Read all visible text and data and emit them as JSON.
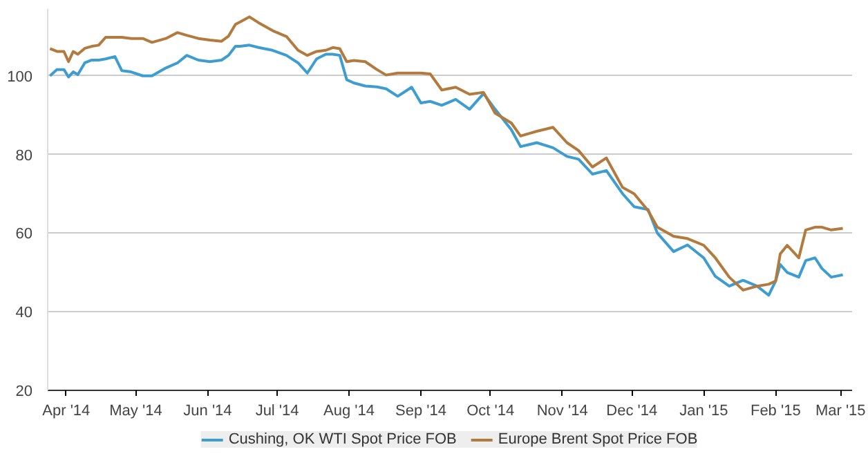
{
  "chart_data": {
    "type": "line",
    "x": [
      "2014-03-25",
      "2014-03-28",
      "2014-03-31",
      "2014-04-02",
      "2014-04-04",
      "2014-04-06",
      "2014-04-09",
      "2014-04-12",
      "2014-04-15",
      "2014-04-18",
      "2014-04-22",
      "2014-04-25",
      "2014-04-29",
      "2014-05-04",
      "2014-05-08",
      "2014-05-14",
      "2014-05-19",
      "2014-05-23",
      "2014-05-28",
      "2014-06-02",
      "2014-06-07",
      "2014-06-10",
      "2014-06-13",
      "2014-06-15",
      "2014-06-19",
      "2014-06-23",
      "2014-06-29",
      "2014-07-05",
      "2014-07-10",
      "2014-07-14",
      "2014-07-18",
      "2014-07-22",
      "2014-07-25",
      "2014-07-28",
      "2014-07-31",
      "2014-08-03",
      "2014-08-08",
      "2014-08-13",
      "2014-08-17",
      "2014-08-22",
      "2014-08-28",
      "2014-09-01",
      "2014-09-05",
      "2014-09-10",
      "2014-09-16",
      "2014-09-22",
      "2014-09-28",
      "2014-10-03",
      "2014-10-10",
      "2014-10-14",
      "2014-10-21",
      "2014-10-28",
      "2014-11-03",
      "2014-11-08",
      "2014-11-14",
      "2014-11-20",
      "2014-11-27",
      "2014-12-02",
      "2014-12-08",
      "2014-12-12",
      "2014-12-19",
      "2014-12-25",
      "2015-01-01",
      "2015-01-06",
      "2015-01-12",
      "2015-01-18",
      "2015-01-24",
      "2015-01-29",
      "2015-02-01",
      "2015-02-03",
      "2015-02-06",
      "2015-02-11",
      "2015-02-14",
      "2015-02-18",
      "2015-02-21",
      "2015-02-25",
      "2015-03-02"
    ],
    "series": [
      {
        "name": "Cushing, OK WTI Spot Price FOB",
        "color": "#3d9dd0",
        "values": [
          100,
          101.6,
          101.6,
          99.7,
          101,
          100.3,
          103.3,
          104,
          104,
          104.3,
          104.9,
          101.3,
          101,
          100,
          100,
          102,
          103.3,
          105.2,
          104,
          103.6,
          104,
          105.2,
          107.5,
          107.5,
          107.8,
          107.2,
          106.5,
          105.2,
          103.3,
          100.7,
          104.3,
          105.5,
          105.5,
          105.2,
          99,
          98.2,
          97.4,
          97.2,
          96.7,
          94.8,
          97.1,
          93.1,
          93.5,
          92.5,
          94,
          91.5,
          95.5,
          91.5,
          86.3,
          82,
          83,
          81.7,
          79.5,
          78.8,
          75,
          75.9,
          70,
          66.7,
          66,
          60,
          55.3,
          57,
          53.7,
          49,
          46.5,
          48,
          46.5,
          44.2,
          47.8,
          52,
          50,
          48.8,
          53,
          53.7,
          51,
          48.8,
          49.4
        ]
      },
      {
        "name": "Europe Brent Spot Price FOB",
        "color": "#b37a3e",
        "values": [
          106.9,
          106.2,
          106.2,
          103.6,
          106.2,
          105.5,
          107,
          107.5,
          107.8,
          109.8,
          109.8,
          109.8,
          109.5,
          109.5,
          108.5,
          109.5,
          111,
          110.3,
          109.5,
          109.1,
          108.8,
          110.1,
          113.1,
          113.7,
          115,
          113.5,
          111.5,
          110,
          106.5,
          105.2,
          106.2,
          106.5,
          107.2,
          106.9,
          103.6,
          103.9,
          103.6,
          101.6,
          100.2,
          100.7,
          100.7,
          100.7,
          100.5,
          96.4,
          97.1,
          95.3,
          95.8,
          90.5,
          88,
          84.7,
          85.9,
          86.9,
          83,
          81,
          76.8,
          79.1,
          71.6,
          70,
          65.7,
          61.5,
          59.2,
          58.6,
          56.9,
          53.7,
          48.8,
          45.5,
          46.5,
          47,
          47.8,
          54.7,
          56.9,
          53.7,
          60.8,
          61.5,
          61.5,
          60.8,
          61.2
        ]
      }
    ],
    "xlim": [
      "2014-03-24",
      "2015-03-06"
    ],
    "xticks": [
      {
        "value": "2014-04-01",
        "label": "Apr '14"
      },
      {
        "value": "2014-05-01",
        "label": "May '14"
      },
      {
        "value": "2014-06-01",
        "label": "Jun '14"
      },
      {
        "value": "2014-07-01",
        "label": "Jul '14"
      },
      {
        "value": "2014-08-01",
        "label": "Aug '14"
      },
      {
        "value": "2014-09-01",
        "label": "Sep '14"
      },
      {
        "value": "2014-10-01",
        "label": "Oct '14"
      },
      {
        "value": "2014-11-01",
        "label": "Nov '14"
      },
      {
        "value": "2014-12-01",
        "label": "Dec '14"
      },
      {
        "value": "2015-01-01",
        "label": "Jan '15"
      },
      {
        "value": "2015-02-01",
        "label": "Feb '15"
      },
      {
        "value": "2015-03-01",
        "label": "Mar '15"
      }
    ],
    "ylim": [
      20,
      117
    ],
    "yticks": [
      20,
      40,
      60,
      80,
      100
    ],
    "grid": "y",
    "legend": "bottom",
    "marker": "none",
    "line_style": "solid"
  }
}
